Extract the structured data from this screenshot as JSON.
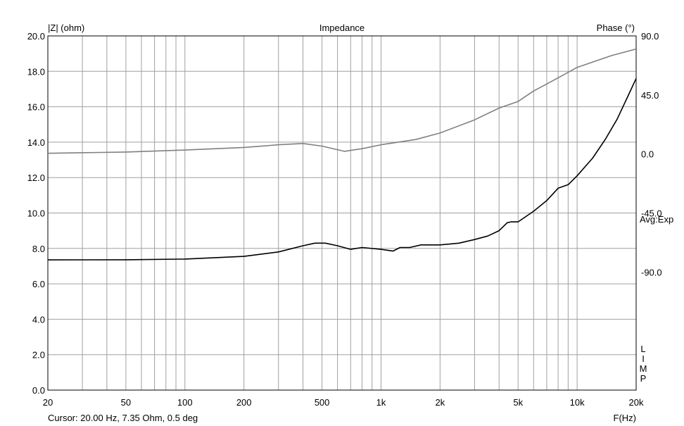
{
  "chart_data": {
    "type": "line",
    "title": "Impedance",
    "ylabel_left": "|Z| (ohm)",
    "ylabel_right": "Phase (°)",
    "xlabel": "F(Hz)",
    "x_scale": "log",
    "xlim": [
      20,
      20000
    ],
    "ylim_left": [
      0,
      20
    ],
    "ylim_right": [
      -180,
      90
    ],
    "grid": true,
    "x_ticks": [
      20,
      50,
      100,
      200,
      500,
      1000,
      2000,
      5000,
      10000,
      20000
    ],
    "x_tick_labels": [
      "20",
      "50",
      "100",
      "200",
      "500",
      "1k",
      "2k",
      "5k",
      "10k",
      "20k"
    ],
    "y_ticks_left": [
      0,
      2,
      4,
      6,
      8,
      10,
      12,
      14,
      16,
      18,
      20
    ],
    "y_tick_labels_left": [
      "0.0",
      "2.0",
      "4.0",
      "6.0",
      "8.0",
      "10.0",
      "12.0",
      "14.0",
      "16.0",
      "18.0",
      "20.0"
    ],
    "y_ticks_right": [
      90,
      45,
      0,
      -45,
      -90
    ],
    "y_tick_labels_right": [
      "90.0",
      "45.0",
      "0.0",
      "-45.0",
      "-90.0"
    ],
    "side_label": "Avg:Exp",
    "vertical_label": [
      "L",
      "I",
      "M",
      "P"
    ],
    "cursor_text": "Cursor: 20.00 Hz, 7.35 Ohm, 0.5 deg",
    "series": [
      {
        "axis": "left",
        "color": "#000000",
        "x": [
          20,
          50,
          100,
          200,
          300,
          400,
          460,
          520,
          600,
          700,
          800,
          1000,
          1150,
          1250,
          1400,
          1600,
          2000,
          2500,
          3000,
          3500,
          4000,
          4400,
          4600,
          5000,
          6000,
          7000,
          8000,
          9000,
          10000,
          12000,
          14000,
          16000,
          18000,
          20000
        ],
        "y": [
          7.35,
          7.36,
          7.4,
          7.55,
          7.8,
          8.15,
          8.3,
          8.3,
          8.15,
          7.95,
          8.05,
          7.95,
          7.85,
          8.05,
          8.05,
          8.2,
          8.2,
          8.3,
          8.5,
          8.7,
          9.0,
          9.45,
          9.5,
          9.5,
          10.1,
          10.7,
          11.4,
          11.6,
          12.1,
          13.1,
          14.2,
          15.3,
          16.5,
          17.6
        ]
      },
      {
        "axis": "right",
        "color": "#808080",
        "x": [
          20,
          50,
          100,
          200,
          300,
          400,
          500,
          650,
          800,
          1000,
          1500,
          2000,
          3000,
          4000,
          5000,
          6000,
          8000,
          10000,
          15000,
          20000
        ],
        "y": [
          0.5,
          1.5,
          3,
          5,
          7,
          8,
          6,
          2,
          4,
          7,
          11,
          16,
          26,
          35,
          40,
          48,
          58,
          66,
          75,
          80
        ]
      }
    ]
  }
}
